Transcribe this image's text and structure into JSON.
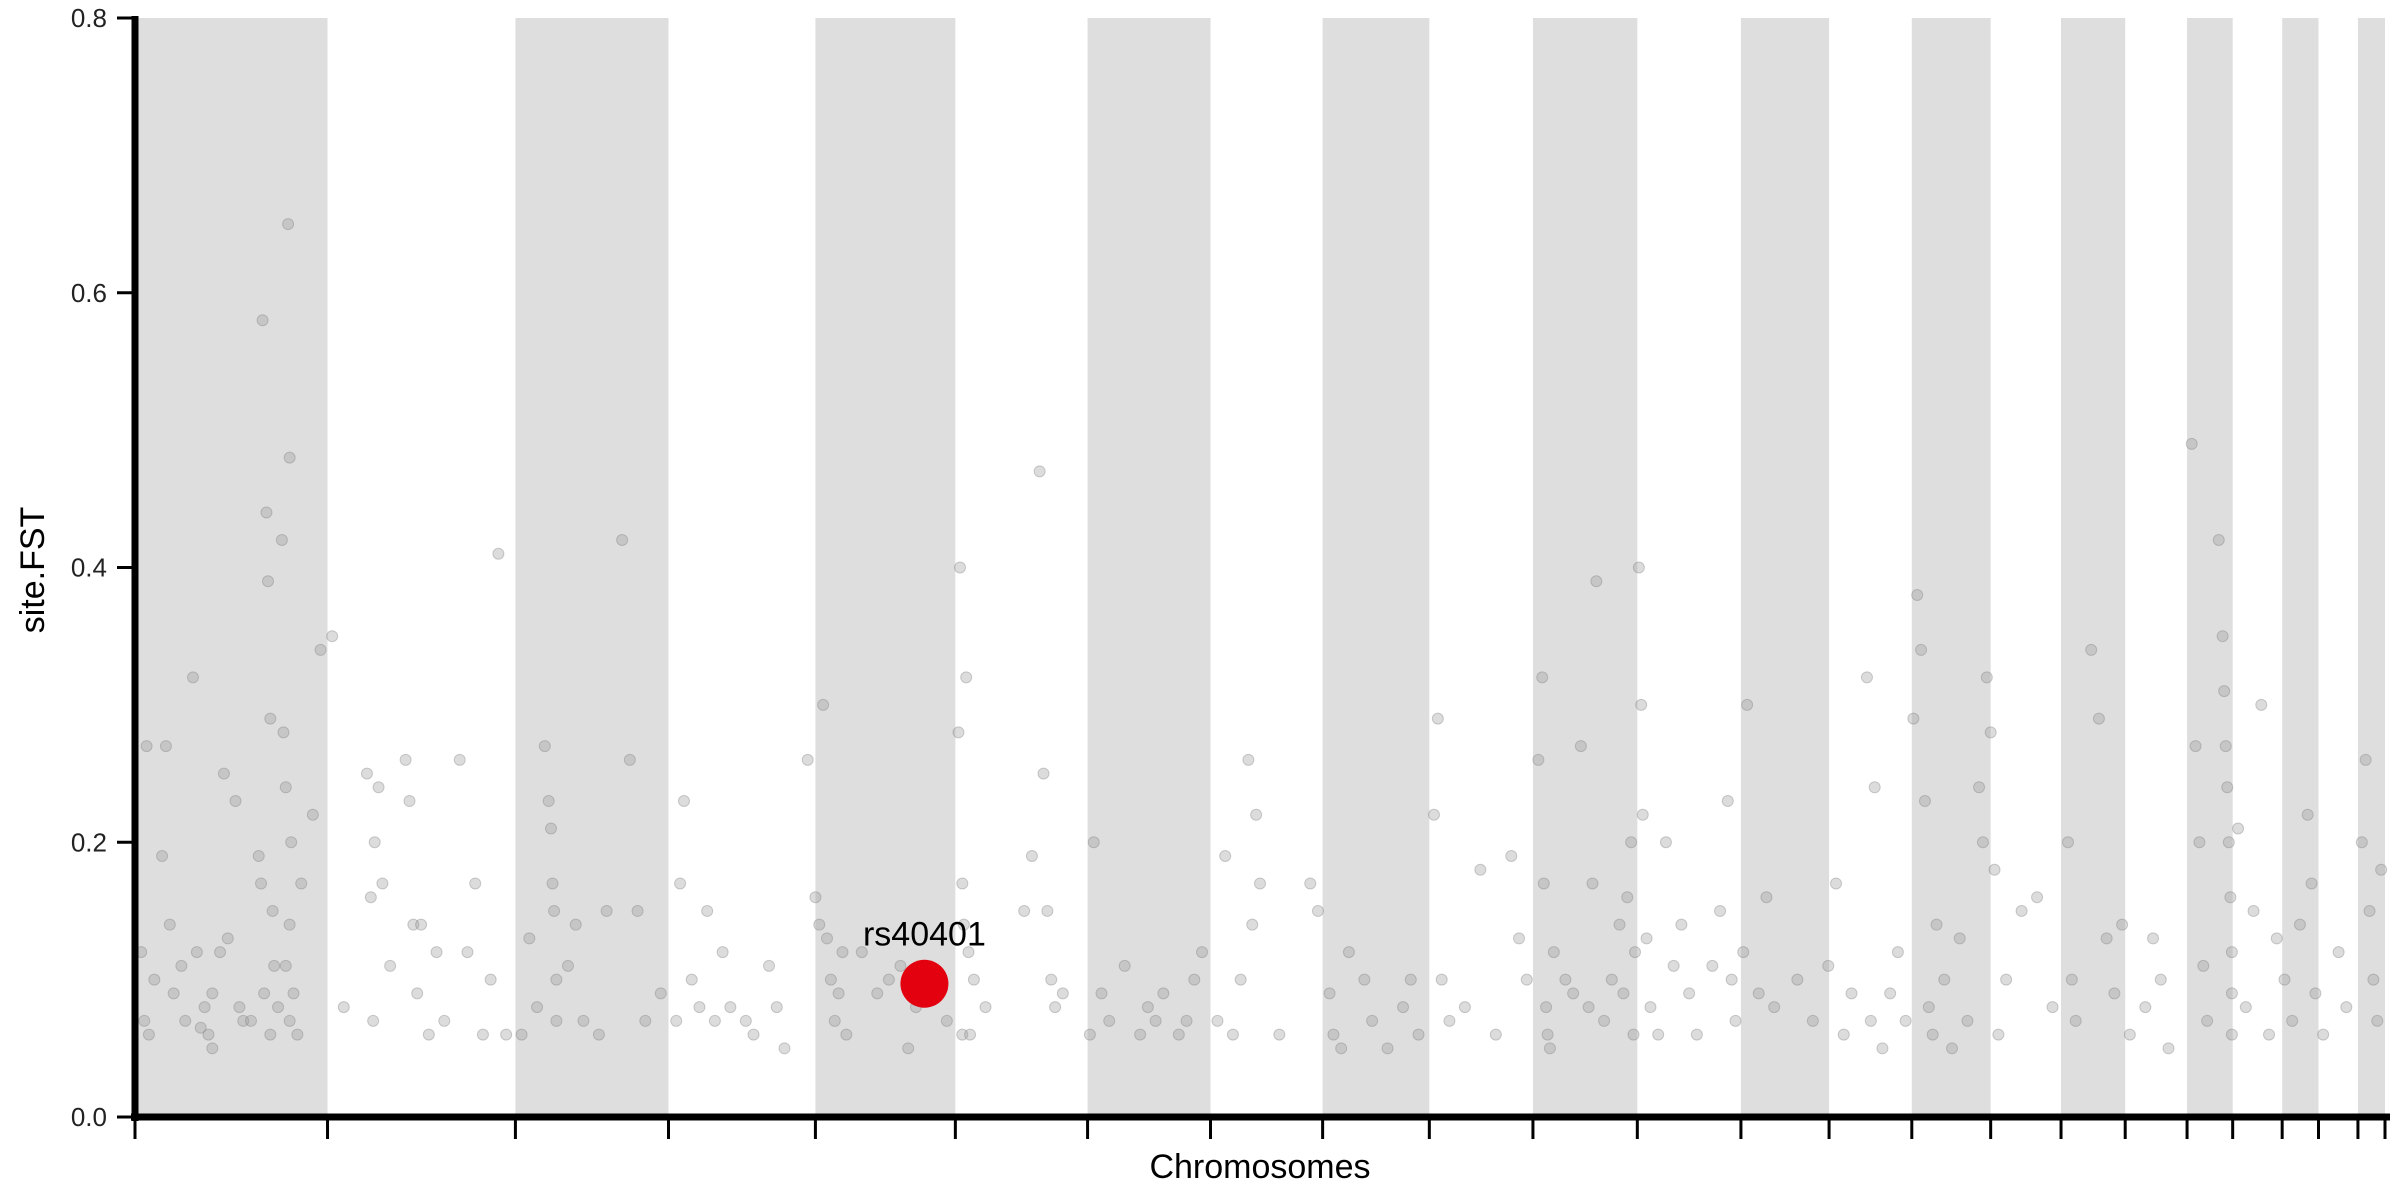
{
  "chart_data": {
    "type": "scatter",
    "title": "",
    "xlabel": "Chromosomes",
    "ylabel": "site.FST",
    "ylim": [
      0,
      0.8
    ],
    "yticks": [
      "0.0",
      "0.2",
      "0.4",
      "0.6",
      "0.8"
    ],
    "xlim": [
      0,
      2910
    ],
    "x_units": "cumulative position (Mb)",
    "grid": false,
    "legend": "none",
    "colors": {
      "band": "#dedede",
      "point": "#9a9a9a",
      "highlight": "#e3000f",
      "axis": "#000000"
    },
    "chromosomes": [
      {
        "start": 0,
        "end": 249
      },
      {
        "start": 249,
        "end": 492
      },
      {
        "start": 492,
        "end": 690
      },
      {
        "start": 690,
        "end": 880
      },
      {
        "start": 880,
        "end": 1061
      },
      {
        "start": 1061,
        "end": 1232
      },
      {
        "start": 1232,
        "end": 1391
      },
      {
        "start": 1391,
        "end": 1536
      },
      {
        "start": 1536,
        "end": 1674
      },
      {
        "start": 1674,
        "end": 1808
      },
      {
        "start": 1808,
        "end": 1943
      },
      {
        "start": 1943,
        "end": 2077
      },
      {
        "start": 2077,
        "end": 2191
      },
      {
        "start": 2191,
        "end": 2298
      },
      {
        "start": 2298,
        "end": 2400
      },
      {
        "start": 2400,
        "end": 2491
      },
      {
        "start": 2491,
        "end": 2574
      },
      {
        "start": 2574,
        "end": 2654
      },
      {
        "start": 2654,
        "end": 2713
      },
      {
        "start": 2713,
        "end": 2777
      },
      {
        "start": 2777,
        "end": 2824
      },
      {
        "start": 2824,
        "end": 2875
      },
      {
        "start": 2875,
        "end": 2910
      }
    ],
    "highlight": {
      "label": "rs40401",
      "x": 1021,
      "y": 0.097
    },
    "points": [
      [
        15,
        0.27
      ],
      [
        8,
        0.12
      ],
      [
        12,
        0.07
      ],
      [
        18,
        0.06
      ],
      [
        25,
        0.1
      ],
      [
        35,
        0.19
      ],
      [
        40,
        0.27
      ],
      [
        45,
        0.14
      ],
      [
        50,
        0.09
      ],
      [
        60,
        0.11
      ],
      [
        65,
        0.07
      ],
      [
        75,
        0.32
      ],
      [
        80,
        0.12
      ],
      [
        85,
        0.065
      ],
      [
        90,
        0.08
      ],
      [
        95,
        0.06
      ],
      [
        100,
        0.09
      ],
      [
        100,
        0.05
      ],
      [
        110,
        0.12
      ],
      [
        115,
        0.25
      ],
      [
        120,
        0.13
      ],
      [
        130,
        0.23
      ],
      [
        135,
        0.08
      ],
      [
        140,
        0.07
      ],
      [
        150,
        0.07
      ],
      [
        160,
        0.19
      ],
      [
        163,
        0.17
      ],
      [
        165,
        0.58
      ],
      [
        167,
        0.09
      ],
      [
        170,
        0.44
      ],
      [
        172,
        0.39
      ],
      [
        175,
        0.29
      ],
      [
        175,
        0.06
      ],
      [
        178,
        0.15
      ],
      [
        180,
        0.11
      ],
      [
        185,
        0.08
      ],
      [
        190,
        0.42
      ],
      [
        192,
        0.28
      ],
      [
        195,
        0.24
      ],
      [
        195,
        0.11
      ],
      [
        198,
        0.65
      ],
      [
        200,
        0.48
      ],
      [
        200,
        0.14
      ],
      [
        200,
        0.07
      ],
      [
        202,
        0.2
      ],
      [
        205,
        0.09
      ],
      [
        210,
        0.06
      ],
      [
        215,
        0.17
      ],
      [
        230,
        0.22
      ],
      [
        240,
        0.34
      ],
      [
        255,
        0.35
      ],
      [
        270,
        0.08
      ],
      [
        300,
        0.25
      ],
      [
        305,
        0.16
      ],
      [
        308,
        0.07
      ],
      [
        310,
        0.2
      ],
      [
        315,
        0.24
      ],
      [
        320,
        0.17
      ],
      [
        330,
        0.11
      ],
      [
        350,
        0.26
      ],
      [
        355,
        0.23
      ],
      [
        360,
        0.14
      ],
      [
        365,
        0.09
      ],
      [
        370,
        0.14
      ],
      [
        380,
        0.06
      ],
      [
        390,
        0.12
      ],
      [
        400,
        0.07
      ],
      [
        420,
        0.26
      ],
      [
        430,
        0.12
      ],
      [
        440,
        0.17
      ],
      [
        450,
        0.06
      ],
      [
        460,
        0.1
      ],
      [
        470,
        0.41
      ],
      [
        480,
        0.06
      ],
      [
        500,
        0.06
      ],
      [
        510,
        0.13
      ],
      [
        520,
        0.08
      ],
      [
        530,
        0.27
      ],
      [
        535,
        0.23
      ],
      [
        538,
        0.21
      ],
      [
        540,
        0.17
      ],
      [
        542,
        0.15
      ],
      [
        545,
        0.1
      ],
      [
        545,
        0.07
      ],
      [
        560,
        0.11
      ],
      [
        570,
        0.14
      ],
      [
        580,
        0.07
      ],
      [
        600,
        0.06
      ],
      [
        610,
        0.15
      ],
      [
        630,
        0.42
      ],
      [
        640,
        0.26
      ],
      [
        650,
        0.15
      ],
      [
        660,
        0.07
      ],
      [
        680,
        0.09
      ],
      [
        700,
        0.07
      ],
      [
        705,
        0.17
      ],
      [
        710,
        0.23
      ],
      [
        720,
        0.1
      ],
      [
        730,
        0.08
      ],
      [
        740,
        0.15
      ],
      [
        750,
        0.07
      ],
      [
        760,
        0.12
      ],
      [
        770,
        0.08
      ],
      [
        790,
        0.07
      ],
      [
        800,
        0.06
      ],
      [
        820,
        0.11
      ],
      [
        830,
        0.08
      ],
      [
        840,
        0.05
      ],
      [
        870,
        0.26
      ],
      [
        880,
        0.16
      ],
      [
        885,
        0.14
      ],
      [
        890,
        0.3
      ],
      [
        895,
        0.13
      ],
      [
        900,
        0.1
      ],
      [
        905,
        0.07
      ],
      [
        910,
        0.09
      ],
      [
        915,
        0.12
      ],
      [
        920,
        0.06
      ],
      [
        940,
        0.12
      ],
      [
        960,
        0.09
      ],
      [
        975,
        0.1
      ],
      [
        990,
        0.11
      ],
      [
        1000,
        0.05
      ],
      [
        1010,
        0.08
      ],
      [
        1040,
        0.1
      ],
      [
        1050,
        0.07
      ],
      [
        1065,
        0.28
      ],
      [
        1067,
        0.4
      ],
      [
        1070,
        0.17
      ],
      [
        1070,
        0.06
      ],
      [
        1072,
        0.14
      ],
      [
        1075,
        0.32
      ],
      [
        1078,
        0.12
      ],
      [
        1080,
        0.06
      ],
      [
        1085,
        0.1
      ],
      [
        1100,
        0.08
      ],
      [
        1150,
        0.15
      ],
      [
        1160,
        0.19
      ],
      [
        1170,
        0.47
      ],
      [
        1175,
        0.25
      ],
      [
        1180,
        0.15
      ],
      [
        1185,
        0.1
      ],
      [
        1190,
        0.08
      ],
      [
        1200,
        0.09
      ],
      [
        1235,
        0.06
      ],
      [
        1240,
        0.2
      ],
      [
        1250,
        0.09
      ],
      [
        1260,
        0.07
      ],
      [
        1280,
        0.11
      ],
      [
        1300,
        0.06
      ],
      [
        1310,
        0.08
      ],
      [
        1320,
        0.07
      ],
      [
        1330,
        0.09
      ],
      [
        1350,
        0.06
      ],
      [
        1360,
        0.07
      ],
      [
        1370,
        0.1
      ],
      [
        1380,
        0.12
      ],
      [
        1400,
        0.07
      ],
      [
        1410,
        0.19
      ],
      [
        1420,
        0.06
      ],
      [
        1430,
        0.1
      ],
      [
        1440,
        0.26
      ],
      [
        1445,
        0.14
      ],
      [
        1450,
        0.22
      ],
      [
        1455,
        0.17
      ],
      [
        1480,
        0.06
      ],
      [
        1520,
        0.17
      ],
      [
        1530,
        0.15
      ],
      [
        1545,
        0.09
      ],
      [
        1550,
        0.06
      ],
      [
        1560,
        0.05
      ],
      [
        1570,
        0.12
      ],
      [
        1590,
        0.1
      ],
      [
        1600,
        0.07
      ],
      [
        1620,
        0.05
      ],
      [
        1640,
        0.08
      ],
      [
        1650,
        0.1
      ],
      [
        1660,
        0.06
      ],
      [
        1680,
        0.22
      ],
      [
        1685,
        0.29
      ],
      [
        1690,
        0.1
      ],
      [
        1700,
        0.07
      ],
      [
        1720,
        0.08
      ],
      [
        1740,
        0.18
      ],
      [
        1760,
        0.06
      ],
      [
        1780,
        0.19
      ],
      [
        1790,
        0.13
      ],
      [
        1800,
        0.1
      ],
      [
        1815,
        0.26
      ],
      [
        1820,
        0.32
      ],
      [
        1822,
        0.17
      ],
      [
        1825,
        0.08
      ],
      [
        1827,
        0.06
      ],
      [
        1830,
        0.05
      ],
      [
        1835,
        0.12
      ],
      [
        1850,
        0.1
      ],
      [
        1860,
        0.09
      ],
      [
        1870,
        0.27
      ],
      [
        1880,
        0.08
      ],
      [
        1885,
        0.17
      ],
      [
        1890,
        0.39
      ],
      [
        1900,
        0.07
      ],
      [
        1910,
        0.1
      ],
      [
        1920,
        0.14
      ],
      [
        1925,
        0.09
      ],
      [
        1930,
        0.16
      ],
      [
        1935,
        0.2
      ],
      [
        1938,
        0.06
      ],
      [
        1940,
        0.12
      ],
      [
        1945,
        0.4
      ],
      [
        1948,
        0.3
      ],
      [
        1950,
        0.22
      ],
      [
        1955,
        0.13
      ],
      [
        1960,
        0.08
      ],
      [
        1970,
        0.06
      ],
      [
        1980,
        0.2
      ],
      [
        1990,
        0.11
      ],
      [
        2000,
        0.14
      ],
      [
        2010,
        0.09
      ],
      [
        2020,
        0.06
      ],
      [
        2040,
        0.11
      ],
      [
        2050,
        0.15
      ],
      [
        2060,
        0.23
      ],
      [
        2065,
        0.1
      ],
      [
        2070,
        0.07
      ],
      [
        2080,
        0.12
      ],
      [
        2085,
        0.3
      ],
      [
        2100,
        0.09
      ],
      [
        2110,
        0.16
      ],
      [
        2120,
        0.08
      ],
      [
        2150,
        0.1
      ],
      [
        2170,
        0.07
      ],
      [
        2190,
        0.11
      ],
      [
        2200,
        0.17
      ],
      [
        2210,
        0.06
      ],
      [
        2220,
        0.09
      ],
      [
        2240,
        0.32
      ],
      [
        2245,
        0.07
      ],
      [
        2250,
        0.24
      ],
      [
        2260,
        0.05
      ],
      [
        2270,
        0.09
      ],
      [
        2280,
        0.12
      ],
      [
        2290,
        0.07
      ],
      [
        2300,
        0.29
      ],
      [
        2305,
        0.38
      ],
      [
        2310,
        0.34
      ],
      [
        2315,
        0.23
      ],
      [
        2320,
        0.08
      ],
      [
        2325,
        0.06
      ],
      [
        2330,
        0.14
      ],
      [
        2340,
        0.1
      ],
      [
        2350,
        0.05
      ],
      [
        2360,
        0.13
      ],
      [
        2370,
        0.07
      ],
      [
        2385,
        0.24
      ],
      [
        2390,
        0.2
      ],
      [
        2395,
        0.32
      ],
      [
        2400,
        0.28
      ],
      [
        2405,
        0.18
      ],
      [
        2410,
        0.06
      ],
      [
        2420,
        0.1
      ],
      [
        2440,
        0.15
      ],
      [
        2460,
        0.16
      ],
      [
        2480,
        0.08
      ],
      [
        2500,
        0.2
      ],
      [
        2505,
        0.1
      ],
      [
        2510,
        0.07
      ],
      [
        2530,
        0.34
      ],
      [
        2540,
        0.29
      ],
      [
        2550,
        0.13
      ],
      [
        2560,
        0.09
      ],
      [
        2570,
        0.14
      ],
      [
        2580,
        0.06
      ],
      [
        2600,
        0.08
      ],
      [
        2610,
        0.13
      ],
      [
        2620,
        0.1
      ],
      [
        2630,
        0.05
      ],
      [
        2660,
        0.49
      ],
      [
        2665,
        0.27
      ],
      [
        2670,
        0.2
      ],
      [
        2675,
        0.11
      ],
      [
        2680,
        0.07
      ],
      [
        2695,
        0.42
      ],
      [
        2700,
        0.35
      ],
      [
        2702,
        0.31
      ],
      [
        2704,
        0.27
      ],
      [
        2706,
        0.24
      ],
      [
        2708,
        0.2
      ],
      [
        2710,
        0.16
      ],
      [
        2712,
        0.12
      ],
      [
        2712,
        0.09
      ],
      [
        2712,
        0.06
      ],
      [
        2720,
        0.21
      ],
      [
        2730,
        0.08
      ],
      [
        2740,
        0.15
      ],
      [
        2750,
        0.3
      ],
      [
        2760,
        0.06
      ],
      [
        2770,
        0.13
      ],
      [
        2780,
        0.1
      ],
      [
        2790,
        0.07
      ],
      [
        2800,
        0.14
      ],
      [
        2810,
        0.22
      ],
      [
        2815,
        0.17
      ],
      [
        2820,
        0.09
      ],
      [
        2830,
        0.06
      ],
      [
        2850,
        0.12
      ],
      [
        2860,
        0.08
      ],
      [
        2880,
        0.2
      ],
      [
        2885,
        0.26
      ],
      [
        2890,
        0.15
      ],
      [
        2895,
        0.1
      ],
      [
        2900,
        0.07
      ],
      [
        2905,
        0.18
      ]
    ]
  }
}
